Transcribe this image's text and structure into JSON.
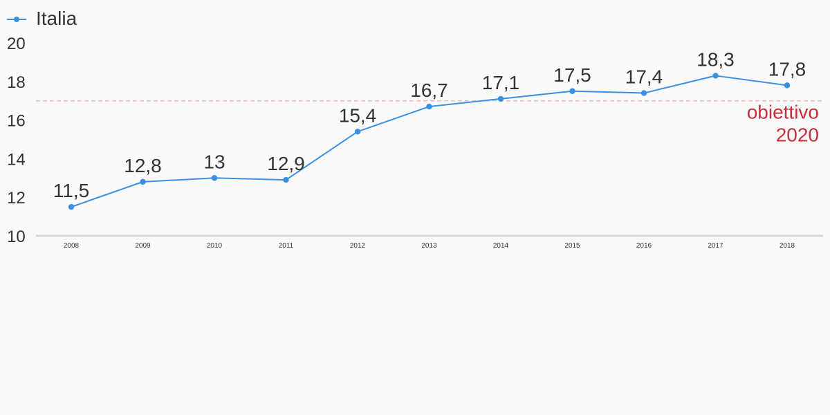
{
  "chart_data": {
    "type": "line",
    "x": [
      "2008",
      "2009",
      "2010",
      "2011",
      "2012",
      "2013",
      "2014",
      "2015",
      "2016",
      "2017",
      "2018"
    ],
    "series": [
      {
        "name": "Italia",
        "values": [
          11.5,
          12.8,
          13,
          12.9,
          15.4,
          16.7,
          17.1,
          17.5,
          17.4,
          18.3,
          17.8
        ],
        "labels": [
          "11,5",
          "12,8",
          "13",
          "12,9",
          "15,4",
          "16,7",
          "17,1",
          "17,5",
          "17,4",
          "18,3",
          "17,8"
        ],
        "color": "#3a8ee6"
      }
    ],
    "ylim": [
      10,
      20
    ],
    "yticks": [
      "10",
      "12",
      "14",
      "16",
      "18",
      "20"
    ],
    "target": {
      "value": 17,
      "label_line1": "obiettivo",
      "label_line2": "2020",
      "color": "#c62f3a",
      "line_color": "#f5b8bd"
    },
    "legend": "top-left",
    "grid": false,
    "title": "",
    "xlabel": "",
    "ylabel": ""
  }
}
